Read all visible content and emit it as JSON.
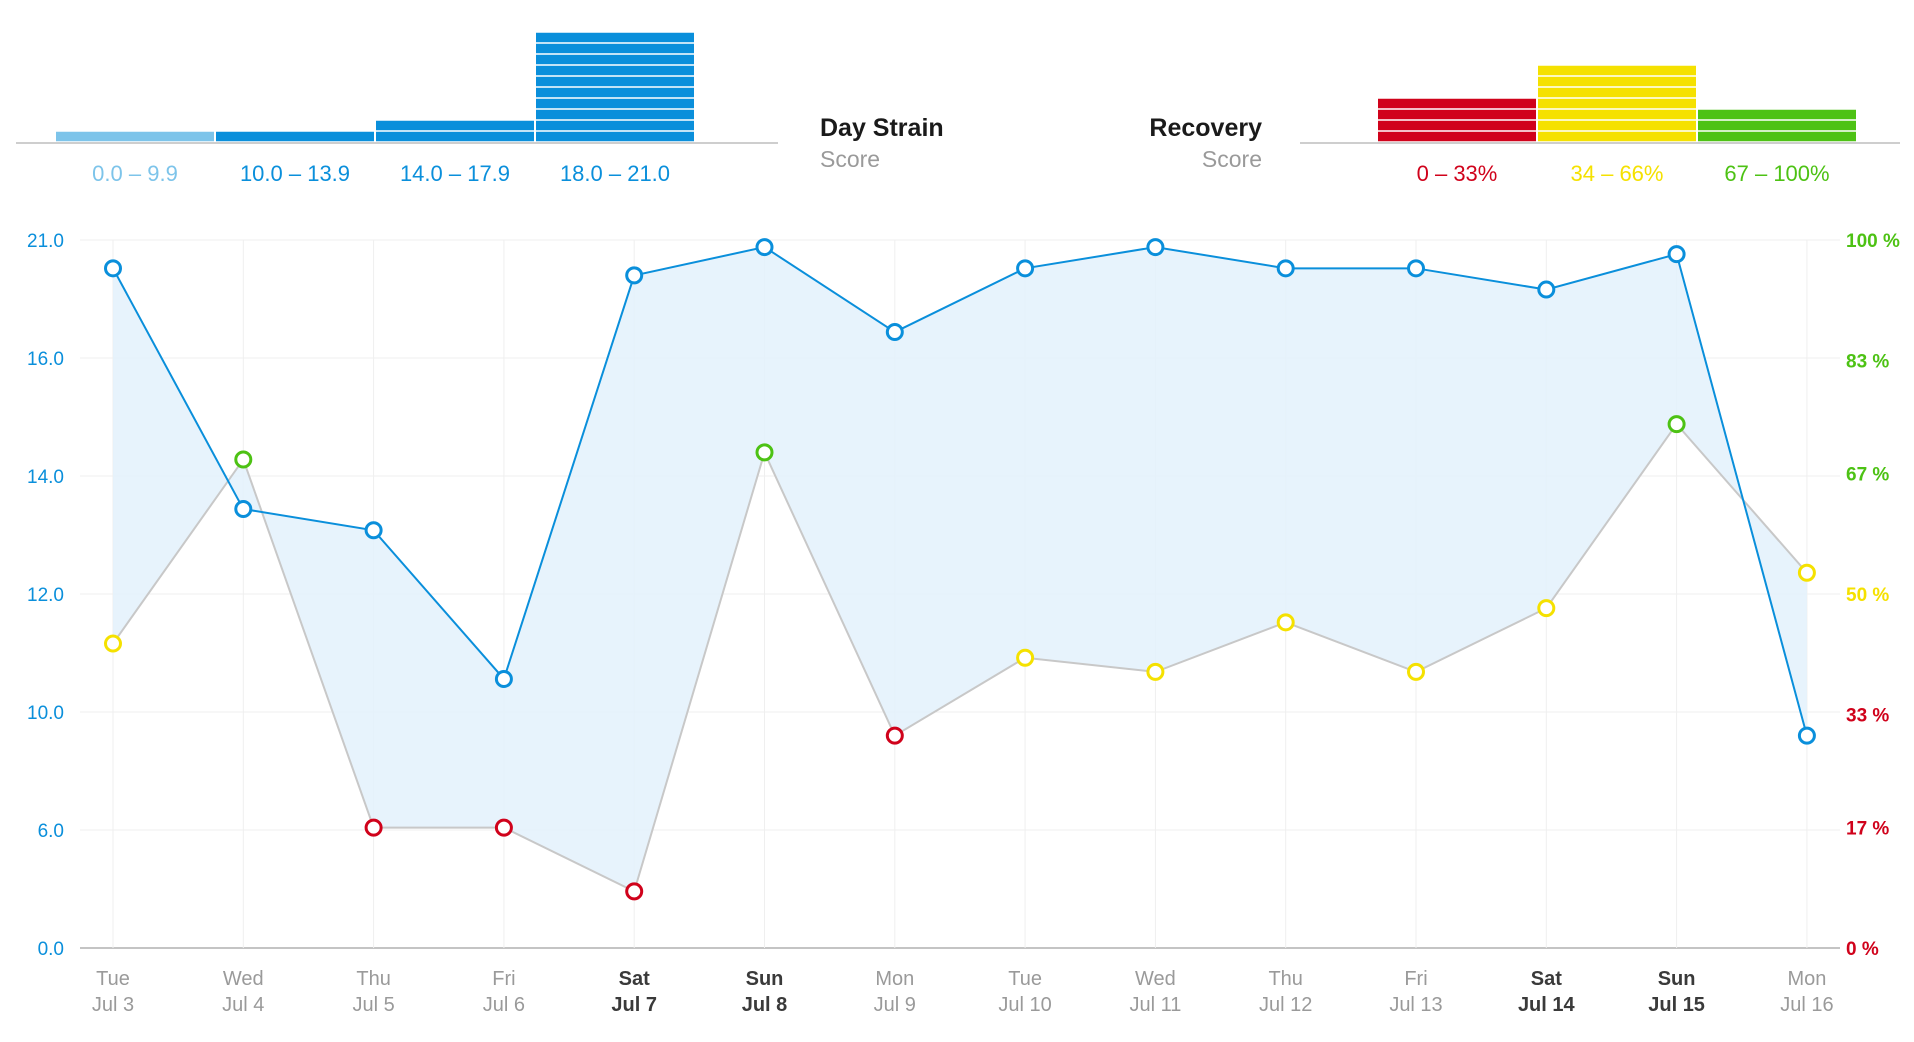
{
  "header": {
    "strain_title": "Day Strain",
    "strain_sub": "Score",
    "recovery_title": "Recovery",
    "recovery_sub": "Score"
  },
  "strain_legend": [
    {
      "label": "0.0 – 9.9",
      "color": "#7dc4ea",
      "count": 1
    },
    {
      "label": "10.0 – 13.9",
      "color": "#0a8fdb",
      "count": 1
    },
    {
      "label": "14.0 – 17.9",
      "color": "#0a8fdb",
      "count": 2
    },
    {
      "label": "18.0 – 21.0",
      "color": "#0a8fdb",
      "count": 10
    }
  ],
  "recovery_legend": [
    {
      "label": "0 – 33%",
      "color": "#d0021b",
      "count": 4
    },
    {
      "label": "34 – 66%",
      "color": "#f5e100",
      "count": 7
    },
    {
      "label": "67 – 100%",
      "color": "#4dc214",
      "count": 3
    }
  ],
  "colors": {
    "strain": "#0a8fdb",
    "recovery_line": "#c8c8c8",
    "fill": "#e3f1fb",
    "red": "#d0021b",
    "yellow": "#f5e100",
    "green": "#4dc214"
  },
  "chart_data": {
    "type": "line",
    "title": "Day Strain Score vs Recovery Score",
    "categories": [
      {
        "day": "Tue",
        "date": "Jul 3",
        "weekend": false
      },
      {
        "day": "Wed",
        "date": "Jul 4",
        "weekend": false
      },
      {
        "day": "Thu",
        "date": "Jul 5",
        "weekend": false
      },
      {
        "day": "Fri",
        "date": "Jul 6",
        "weekend": false
      },
      {
        "day": "Sat",
        "date": "Jul 7",
        "weekend": true
      },
      {
        "day": "Sun",
        "date": "Jul 8",
        "weekend": true
      },
      {
        "day": "Mon",
        "date": "Jul 9",
        "weekend": false
      },
      {
        "day": "Tue",
        "date": "Jul 10",
        "weekend": false
      },
      {
        "day": "Wed",
        "date": "Jul 11",
        "weekend": false
      },
      {
        "day": "Thu",
        "date": "Jul 12",
        "weekend": false
      },
      {
        "day": "Fri",
        "date": "Jul 13",
        "weekend": false
      },
      {
        "day": "Sat",
        "date": "Jul 14",
        "weekend": true
      },
      {
        "day": "Sun",
        "date": "Jul 15",
        "weekend": true
      },
      {
        "day": "Mon",
        "date": "Jul 16",
        "weekend": false
      }
    ],
    "series": [
      {
        "name": "Day Strain",
        "axis": "left",
        "axis_fraction": [
          0.96,
          0.62,
          0.59,
          0.38,
          0.95,
          0.99,
          0.87,
          0.96,
          0.99,
          0.96,
          0.96,
          0.93,
          0.98,
          0.3
        ]
      },
      {
        "name": "Recovery",
        "axis": "right",
        "values": [
          43,
          69,
          17,
          17,
          8,
          70,
          30,
          41,
          39,
          46,
          39,
          48,
          74,
          53
        ]
      }
    ],
    "y_left": {
      "ticks": [
        {
          "label": "0.0",
          "pos": 0
        },
        {
          "label": "6.0",
          "pos": 1
        },
        {
          "label": "10.0",
          "pos": 2
        },
        {
          "label": "12.0",
          "pos": 3
        },
        {
          "label": "14.0",
          "pos": 4
        },
        {
          "label": "16.0",
          "pos": 5
        },
        {
          "label": "21.0",
          "pos": 6
        }
      ]
    },
    "y_right": {
      "ylim": [
        0,
        100
      ],
      "ticks": [
        {
          "label": "0 %",
          "value": 0
        },
        {
          "label": "17 %",
          "value": 17
        },
        {
          "label": "33 %",
          "value": 33
        },
        {
          "label": "50 %",
          "value": 50
        },
        {
          "label": "67 %",
          "value": 67
        },
        {
          "label": "83 %",
          "value": 83
        },
        {
          "label": "100 %",
          "value": 100
        }
      ]
    },
    "grid": true
  }
}
